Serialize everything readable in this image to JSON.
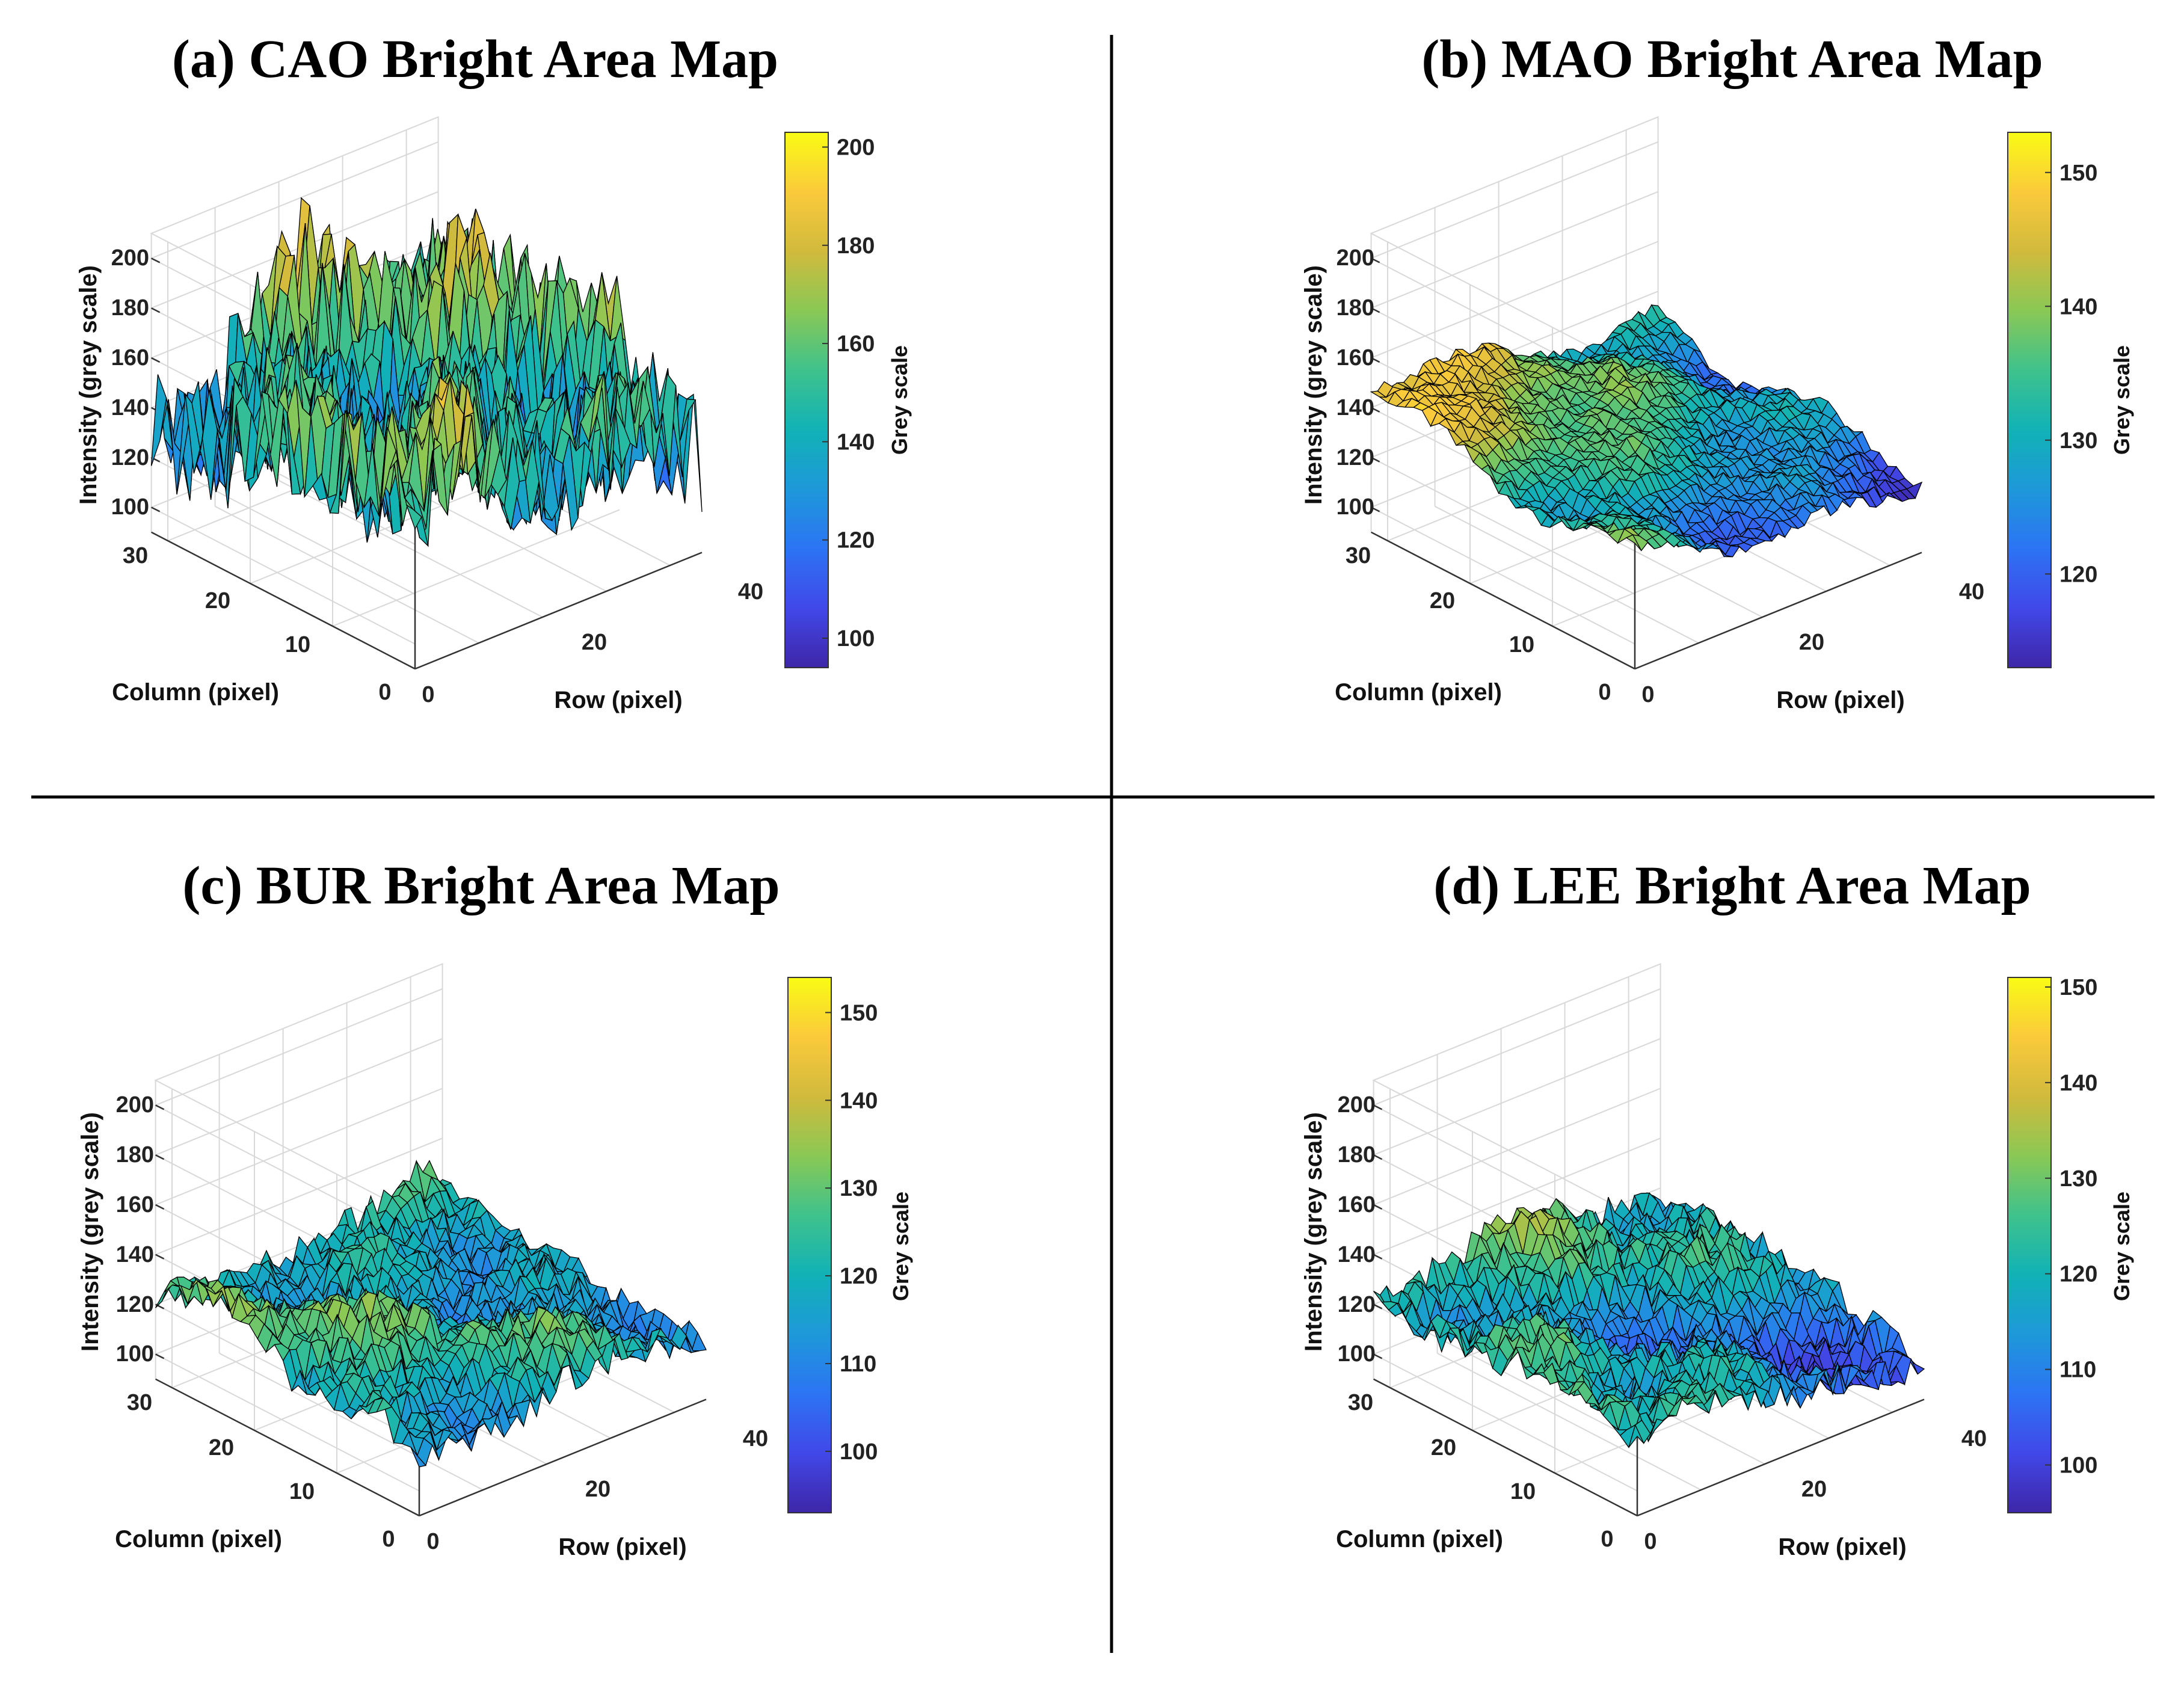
{
  "chart_data": [
    {
      "type": "surface3d",
      "title": "(a) CAO Bright Area Map",
      "xlabel": "Row (pixel)",
      "ylabel": "Column (pixel)",
      "zlabel": "Intensity (grey scale)",
      "colorbar_label": "Grey scale",
      "x_range": [
        0,
        45
      ],
      "y_range": [
        0,
        32
      ],
      "z_range": [
        90,
        210
      ],
      "x_ticks": [
        "0",
        "20",
        "40"
      ],
      "y_ticks": [
        "0",
        "10",
        "20",
        "30"
      ],
      "z_ticks": [
        "100",
        "120",
        "140",
        "160",
        "180",
        "200"
      ],
      "colorbar_ticks": [
        "100",
        "120",
        "140",
        "160",
        "180",
        "200"
      ],
      "colorbar_range": [
        94,
        203
      ],
      "surface_level": 148,
      "surface_amplitude": 26,
      "surface_tilt": 0,
      "roughness": "high"
    },
    {
      "type": "surface3d",
      "title": "(b) MAO Bright Area Map",
      "xlabel": "Row (pixel)",
      "ylabel": "Column (pixel)",
      "zlabel": "Intensity (grey scale)",
      "colorbar_label": "Grey scale",
      "x_range": [
        0,
        45
      ],
      "y_range": [
        0,
        32
      ],
      "z_range": [
        90,
        210
      ],
      "x_ticks": [
        "0",
        "20",
        "40"
      ],
      "y_ticks": [
        "0",
        "10",
        "20",
        "30"
      ],
      "z_ticks": [
        "100",
        "120",
        "140",
        "160",
        "180",
        "200"
      ],
      "colorbar_ticks": [
        "120",
        "130",
        "140",
        "150"
      ],
      "colorbar_range": [
        113,
        153
      ],
      "surface_level": 132,
      "surface_amplitude": 8,
      "surface_tilt": 28,
      "roughness": "low"
    },
    {
      "type": "surface3d",
      "title": "(c) BUR Bright Area Map",
      "xlabel": "Row (pixel)",
      "ylabel": "Column (pixel)",
      "zlabel": "Intensity (grey scale)",
      "colorbar_label": "Grey scale",
      "x_range": [
        0,
        45
      ],
      "y_range": [
        0,
        32
      ],
      "z_range": [
        90,
        210
      ],
      "x_ticks": [
        "0",
        "20",
        "40"
      ],
      "y_ticks": [
        "0",
        "10",
        "20",
        "30"
      ],
      "z_ticks": [
        "100",
        "120",
        "140",
        "160",
        "180",
        "200"
      ],
      "colorbar_ticks": [
        "100",
        "110",
        "120",
        "130",
        "140",
        "150"
      ],
      "colorbar_range": [
        93,
        154
      ],
      "surface_level": 120,
      "surface_amplitude": 12,
      "surface_tilt": 10,
      "roughness": "medium"
    },
    {
      "type": "surface3d",
      "title": "(d) LEE Bright Area Map",
      "xlabel": "Row (pixel)",
      "ylabel": "Column (pixel)",
      "zlabel": "Intensity (grey scale)",
      "colorbar_label": "Grey scale",
      "x_range": [
        0,
        45
      ],
      "y_range": [
        0,
        32
      ],
      "z_range": [
        90,
        210
      ],
      "x_ticks": [
        "0",
        "20",
        "40"
      ],
      "y_ticks": [
        "0",
        "10",
        "20",
        "30"
      ],
      "z_ticks": [
        "100",
        "120",
        "140",
        "160",
        "180",
        "200"
      ],
      "colorbar_ticks": [
        "100",
        "110",
        "120",
        "130",
        "140",
        "150"
      ],
      "colorbar_range": [
        95,
        151
      ],
      "surface_level": 118,
      "surface_amplitude": 12,
      "surface_tilt": 18,
      "roughness": "medium"
    }
  ],
  "colormap": [
    "#3e26a8",
    "#4148e8",
    "#2c74f4",
    "#1e98d9",
    "#11b2b6",
    "#3fc28c",
    "#8ac855",
    "#d1ba3c",
    "#fbca3b",
    "#f9fb14"
  ],
  "colors": {
    "mesh_line": "#000000",
    "grid": "#d8d8d8",
    "divider": "#000000"
  }
}
